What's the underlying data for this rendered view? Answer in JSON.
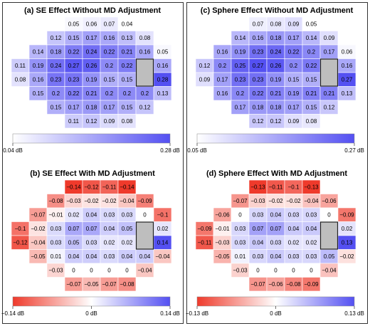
{
  "chart_data": [
    {
      "type": "heatmap",
      "title": "(a) SE Effect Without MD Adjustment",
      "rows": [
        [
          0.05,
          0.06,
          0.07,
          0.04
        ],
        [
          0.12,
          0.15,
          0.17,
          0.16,
          0.13,
          0.08
        ],
        [
          0.14,
          0.18,
          0.22,
          0.24,
          0.22,
          0.21,
          0.16,
          0.05
        ],
        [
          0.11,
          0.19,
          0.24,
          0.27,
          0.26,
          0.2,
          0.22,
          null,
          0.16
        ],
        [
          0.08,
          0.16,
          0.23,
          0.23,
          0.19,
          0.15,
          0.15,
          null,
          0.28
        ],
        [
          0.15,
          0.2,
          0.22,
          0.21,
          0.2,
          0.2,
          0.2,
          0.13
        ],
        [
          0.15,
          0.17,
          0.18,
          0.17,
          0.15,
          0.12
        ],
        [
          0.11,
          0.12,
          0.09,
          0.08
        ]
      ],
      "colorbar": {
        "lim": [
          0.04,
          0.28
        ],
        "ticks": [
          {
            "value": 0.04,
            "label": "0.04 dB"
          },
          {
            "value": 0.28,
            "label": "0.28 dB"
          }
        ],
        "colors": [
          "#ffffff",
          "#5450f2"
        ]
      },
      "missing_color": "#bebebe"
    },
    {
      "type": "heatmap",
      "title": "(b) SE Effect With MD Adjustment",
      "rows": [
        [
          -0.14,
          -0.12,
          -0.11,
          -0.14
        ],
        [
          -0.08,
          -0.03,
          -0.02,
          -0.02,
          -0.04,
          -0.09
        ],
        [
          -0.07,
          -0.01,
          0.02,
          0.04,
          0.03,
          0.03,
          0,
          -0.1
        ],
        [
          -0.1,
          -0.02,
          0.03,
          0.07,
          0.07,
          0.04,
          0.05,
          null,
          0.02
        ],
        [
          -0.12,
          -0.04,
          0.03,
          0.05,
          0.03,
          0.02,
          0.02,
          null,
          0.14
        ],
        [
          -0.05,
          0.01,
          0.04,
          0.04,
          0.03,
          0.04,
          0.04,
          -0.04
        ],
        [
          -0.03,
          0,
          0,
          0,
          0,
          -0.04
        ],
        [
          -0.07,
          -0.05,
          -0.07,
          -0.08
        ]
      ],
      "value_labels": [
        [
          "−0.14",
          "−0.12",
          "−0.11",
          "−0.14"
        ],
        [
          "−0.08",
          "−0.03",
          "−0.02",
          "−0.02",
          "−0.04",
          "−0.09"
        ],
        [
          "−0.07",
          "−0.01",
          "0.02",
          "0.04",
          "0.03",
          "0.03",
          "0",
          "−0.1"
        ],
        [
          "−0.1",
          "−0.02",
          "0.03",
          "0.07",
          "0.07",
          "0.04",
          "0.05",
          null,
          "0.02"
        ],
        [
          "−0.12",
          "−0.04",
          "0.03",
          "0.05",
          "0.03",
          "0.02",
          "0.02",
          null,
          "0.14"
        ],
        [
          "−0.05",
          "0.01",
          "0.04",
          "0.04",
          "0.03",
          "0.04",
          "0.04",
          "−0.04"
        ],
        [
          "−0.03",
          "0",
          "0",
          "0",
          "0",
          "−0.04"
        ],
        [
          "−0.07",
          "−0.05",
          "−0.07",
          "−0.08"
        ]
      ],
      "colorbar": {
        "lim": [
          -0.14,
          0.14
        ],
        "ticks": [
          {
            "value": -0.14,
            "label": "−0.14 dB"
          },
          {
            "value": 0,
            "label": "0 dB"
          },
          {
            "value": 0.14,
            "label": "0.14 dB"
          }
        ],
        "colors": [
          "#ef3a2b",
          "#ffffff",
          "#5450f2"
        ]
      },
      "missing_color": "#bebebe"
    },
    {
      "type": "heatmap",
      "title": "(c) Sphere Effect Without MD Adjustment",
      "rows": [
        [
          0.07,
          0.08,
          0.09,
          0.05
        ],
        [
          0.14,
          0.16,
          0.18,
          0.17,
          0.14,
          0.09
        ],
        [
          0.16,
          0.19,
          0.23,
          0.24,
          0.22,
          0.2,
          0.17,
          0.06
        ],
        [
          0.12,
          0.2,
          0.25,
          0.27,
          0.26,
          0.2,
          0.22,
          null,
          0.16
        ],
        [
          0.09,
          0.17,
          0.23,
          0.23,
          0.19,
          0.15,
          0.15,
          null,
          0.27
        ],
        [
          0.16,
          0.2,
          0.22,
          0.21,
          0.19,
          0.21,
          0.21,
          0.13
        ],
        [
          0.17,
          0.18,
          0.18,
          0.17,
          0.15,
          0.12
        ],
        [
          0.12,
          0.12,
          0.09,
          0.08
        ]
      ],
      "colorbar": {
        "lim": [
          0.05,
          0.27
        ],
        "ticks": [
          {
            "value": 0.05,
            "label": "0.05 dB"
          },
          {
            "value": 0.27,
            "label": "0.27 dB"
          }
        ],
        "colors": [
          "#ffffff",
          "#5450f2"
        ]
      },
      "missing_color": "#bebebe"
    },
    {
      "type": "heatmap",
      "title": "(d) Sphere Effect With MD Adjustment",
      "rows": [
        [
          -0.13,
          -0.11,
          -0.1,
          -0.13
        ],
        [
          -0.07,
          -0.03,
          -0.02,
          -0.02,
          -0.04,
          -0.06
        ],
        [
          -0.06,
          0,
          0.03,
          0.04,
          0.03,
          0.03,
          0,
          -0.09
        ],
        [
          -0.09,
          -0.01,
          0.03,
          0.07,
          0.07,
          0.04,
          0.04,
          null,
          0.02
        ],
        [
          -0.11,
          -0.03,
          0.03,
          0.04,
          0.03,
          0.02,
          0.02,
          null,
          0.13
        ],
        [
          -0.05,
          0.01,
          0.03,
          0.04,
          0.03,
          0.03,
          0.05,
          -0.02
        ],
        [
          -0.03,
          0,
          0,
          0,
          0,
          -0.04
        ],
        [
          -0.07,
          -0.06,
          -0.08,
          -0.09
        ]
      ],
      "value_labels": [
        [
          "−0.13",
          "−0.11",
          "−0.1",
          "−0.13"
        ],
        [
          "−0.07",
          "−0.03",
          "−0.02",
          "−0.02",
          "−0.04",
          "−0.06"
        ],
        [
          "−0.06",
          "0",
          "0.03",
          "0.04",
          "0.03",
          "0.03",
          "0",
          "−0.09"
        ],
        [
          "−0.09",
          "−0.01",
          "0.03",
          "0.07",
          "0.07",
          "0.04",
          "0.04",
          null,
          "0.02"
        ],
        [
          "−0.11",
          "−0.03",
          "0.03",
          "0.04",
          "0.03",
          "0.02",
          "0.02",
          null,
          "0.13"
        ],
        [
          "−0.05",
          "0.01",
          "0.03",
          "0.04",
          "0.03",
          "0.03",
          "0.05",
          "−0.02"
        ],
        [
          "−0.03",
          "0",
          "0",
          "0",
          "0",
          "−0.04"
        ],
        [
          "−0.07",
          "−0.06",
          "−0.08",
          "−0.09"
        ]
      ],
      "colorbar": {
        "lim": [
          -0.13,
          0.13
        ],
        "ticks": [
          {
            "value": -0.13,
            "label": "−0.13 dB"
          },
          {
            "value": 0,
            "label": "0 dB"
          },
          {
            "value": 0.13,
            "label": "0.13 dB"
          }
        ],
        "colors": [
          "#ef3a2b",
          "#ffffff",
          "#5450f2"
        ]
      },
      "missing_color": "#bebebe"
    }
  ]
}
